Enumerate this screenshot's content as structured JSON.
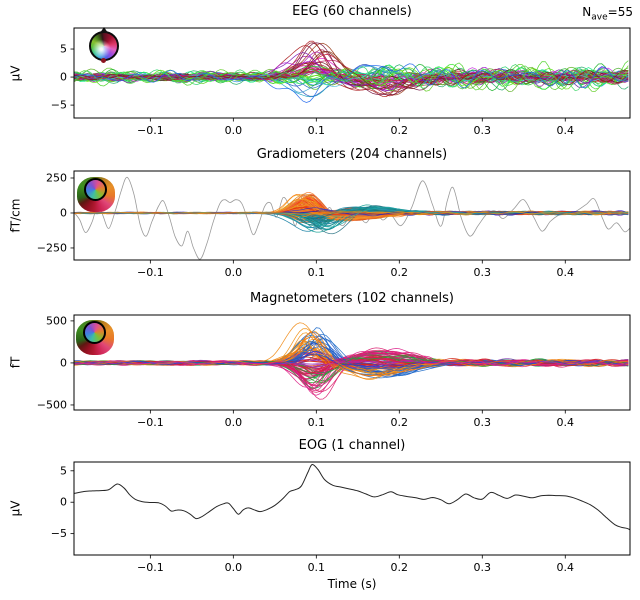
{
  "figure": {
    "nave_prefix": "N",
    "nave_sub": "ave",
    "nave_eq": "=55",
    "background": "#ffffff",
    "spine_color": "#000000"
  },
  "chart_data": [
    {
      "type": "line",
      "variant": "butterfly",
      "title": "EEG (60 channels)",
      "ylabel": "µV",
      "xlabel": "",
      "n_channels": 60,
      "xlim": [
        -0.192,
        0.478
      ],
      "ylim": [
        -7.3,
        8.75
      ],
      "xticks": [
        -0.1,
        0.0,
        0.1,
        0.2,
        0.3,
        0.4
      ],
      "xtick_labels": [
        "−0.1",
        "0.0",
        "0.1",
        "0.2",
        "0.3",
        "0.4"
      ],
      "yticks": [
        5,
        0,
        -5
      ],
      "ytick_labels": [
        "5",
        "0",
        "−5"
      ],
      "annotation": "Nave=55",
      "grid": false,
      "legend": "none",
      "synth": {
        "seed": 11,
        "palette": "eeg",
        "post_noise_scale": 1.8,
        "rebound_scale": -0.45,
        "rebound_delay": 0.085,
        "description": "60 positional rainbow-colored channels, baseline ±1.5 µV, evoked peak ~0.095 s (+7/−4.5 µV), opposite rebound ~0.18 s"
      }
    },
    {
      "type": "line",
      "variant": "butterfly",
      "title": "Gradiometers (204 channels)",
      "ylabel": "fT/cm",
      "xlabel": "",
      "n_channels": 204,
      "xlim": [
        -0.192,
        0.478
      ],
      "ylim": [
        -336,
        300
      ],
      "xticks": [
        -0.1,
        0.0,
        0.1,
        0.2,
        0.3,
        0.4
      ],
      "xtick_labels": [
        "−0.1",
        "0.0",
        "0.1",
        "0.2",
        "0.3",
        "0.4"
      ],
      "yticks": [
        250,
        0,
        -250
      ],
      "ytick_labels": [
        "250",
        "0",
        "−250"
      ],
      "grid": false,
      "legend": "none",
      "synth": {
        "seed": 5,
        "palette": "grad",
        "post_noise_scale": 2.4,
        "rebound_scale": -0.35,
        "rebound_delay": 0.05,
        "description": "tight bundle ±15 fT/cm, evoked peak ~0.085 s (+160 warm / −160 teal)"
      },
      "bad_channel": {
        "color": "#9a9a9a",
        "points": [
          [
            -0.192,
            5
          ],
          [
            -0.185,
            -50
          ],
          [
            -0.178,
            -140
          ],
          [
            -0.17,
            -60
          ],
          [
            -0.163,
            70
          ],
          [
            -0.157,
            -20
          ],
          [
            -0.15,
            -110
          ],
          [
            -0.142,
            20
          ],
          [
            -0.135,
            160
          ],
          [
            -0.128,
            255
          ],
          [
            -0.12,
            140
          ],
          [
            -0.112,
            -90
          ],
          [
            -0.105,
            -165
          ],
          [
            -0.098,
            -60
          ],
          [
            -0.09,
            50
          ],
          [
            -0.084,
            85
          ],
          [
            -0.077,
            -30
          ],
          [
            -0.07,
            -170
          ],
          [
            -0.062,
            -235
          ],
          [
            -0.055,
            -130
          ],
          [
            -0.048,
            -250
          ],
          [
            -0.04,
            -330
          ],
          [
            -0.032,
            -220
          ],
          [
            -0.024,
            -60
          ],
          [
            -0.016,
            70
          ],
          [
            -0.01,
            95
          ],
          [
            -0.004,
            75
          ],
          [
            0.003,
            95
          ],
          [
            0.01,
            70
          ],
          [
            0.017,
            -40
          ],
          [
            0.024,
            -155
          ],
          [
            0.031,
            -70
          ],
          [
            0.038,
            50
          ],
          [
            0.045,
            70
          ],
          [
            0.052,
            -30
          ],
          [
            0.06,
            110
          ],
          [
            0.068,
            40
          ],
          [
            0.075,
            -90
          ],
          [
            0.083,
            120
          ],
          [
            0.092,
            70
          ],
          [
            0.1,
            -110
          ],
          [
            0.108,
            -50
          ],
          [
            0.116,
            40
          ],
          [
            0.124,
            -50
          ],
          [
            0.132,
            -90
          ],
          [
            0.14,
            -30
          ],
          [
            0.15,
            -15
          ],
          [
            0.16,
            -70
          ],
          [
            0.17,
            10
          ],
          [
            0.18,
            -50
          ],
          [
            0.19,
            -15
          ],
          [
            0.202,
            -90
          ],
          [
            0.215,
            40
          ],
          [
            0.228,
            230
          ],
          [
            0.24,
            60
          ],
          [
            0.25,
            -95
          ],
          [
            0.258,
            90
          ],
          [
            0.265,
            180
          ],
          [
            0.275,
            -40
          ],
          [
            0.285,
            -165
          ],
          [
            0.295,
            -90
          ],
          [
            0.305,
            -10
          ],
          [
            0.315,
            15
          ],
          [
            0.325,
            -40
          ],
          [
            0.338,
            30
          ],
          [
            0.35,
            95
          ],
          [
            0.362,
            -30
          ],
          [
            0.372,
            -130
          ],
          [
            0.382,
            -60
          ],
          [
            0.392,
            -15
          ],
          [
            0.402,
            5
          ],
          [
            0.412,
            10
          ],
          [
            0.425,
            60
          ],
          [
            0.435,
            100
          ],
          [
            0.445,
            -40
          ],
          [
            0.452,
            -115
          ],
          [
            0.462,
            -70
          ],
          [
            0.472,
            -135
          ],
          [
            0.482,
            -80
          ],
          [
            0.49,
            -45
          ],
          [
            0.499,
            -15
          ]
        ]
      }
    },
    {
      "type": "line",
      "variant": "butterfly",
      "title": "Magnetometers (102 channels)",
      "ylabel": "fT",
      "xlabel": "",
      "n_channels": 102,
      "xlim": [
        -0.192,
        0.478
      ],
      "ylim": [
        -560,
        570
      ],
      "xticks": [
        -0.1,
        0.0,
        0.1,
        0.2,
        0.3,
        0.4
      ],
      "xtick_labels": [
        "−0.1",
        "0.0",
        "0.1",
        "0.2",
        "0.3",
        "0.4"
      ],
      "yticks": [
        500,
        0,
        -500
      ],
      "ytick_labels": [
        "500",
        "0",
        "−500"
      ],
      "grid": false,
      "legend": "none",
      "synth": {
        "seed": 3,
        "palette": "mag",
        "post_noise_scale": 1.5,
        "rebound_scale": -0.4,
        "rebound_delay": 0.08,
        "description": "slow baseline wiggles ±40 fT, evoked peak ~0.09 s (+520 orange, +480 blue, −430 pink/green)"
      }
    },
    {
      "type": "line",
      "variant": "single",
      "title": "EOG (1 channel)",
      "ylabel": "µV",
      "xlabel": "Time (s)",
      "n_channels": 1,
      "xlim": [
        -0.192,
        0.478
      ],
      "ylim": [
        -8.4,
        6.4
      ],
      "xticks": [
        -0.1,
        0.0,
        0.1,
        0.2,
        0.3,
        0.4
      ],
      "xtick_labels": [
        "−0.1",
        "0.0",
        "0.1",
        "0.2",
        "0.3",
        "0.4"
      ],
      "yticks": [
        5,
        0,
        -5
      ],
      "ytick_labels": [
        "5",
        "0",
        "−5"
      ],
      "grid": false,
      "legend": "none",
      "series": [
        {
          "color": "#262626",
          "points": [
            [
              -0.192,
              1.4
            ],
            [
              -0.18,
              1.7
            ],
            [
              -0.17,
              1.8
            ],
            [
              -0.16,
              1.85
            ],
            [
              -0.15,
              2.0
            ],
            [
              -0.14,
              2.9
            ],
            [
              -0.132,
              2.3
            ],
            [
              -0.125,
              1.2
            ],
            [
              -0.118,
              0.45
            ],
            [
              -0.11,
              0.1
            ],
            [
              -0.1,
              -0.05
            ],
            [
              -0.09,
              -0.1
            ],
            [
              -0.082,
              -0.6
            ],
            [
              -0.075,
              -1.4
            ],
            [
              -0.068,
              -1.25
            ],
            [
              -0.06,
              -1.35
            ],
            [
              -0.052,
              -1.9
            ],
            [
              -0.045,
              -2.6
            ],
            [
              -0.038,
              -2.3
            ],
            [
              -0.03,
              -1.6
            ],
            [
              -0.02,
              -0.7
            ],
            [
              -0.012,
              -0.25
            ],
            [
              -0.006,
              -0.15
            ],
            [
              0.0,
              -1.0
            ],
            [
              0.006,
              -1.9
            ],
            [
              0.012,
              -1.2
            ],
            [
              0.018,
              -0.9
            ],
            [
              0.025,
              -1.2
            ],
            [
              0.032,
              -1.5
            ],
            [
              0.04,
              -1.2
            ],
            [
              0.05,
              -0.5
            ],
            [
              0.06,
              0.6
            ],
            [
              0.068,
              1.7
            ],
            [
              0.075,
              2.0
            ],
            [
              0.082,
              2.6
            ],
            [
              0.09,
              4.8
            ],
            [
              0.095,
              6.0
            ],
            [
              0.102,
              5.2
            ],
            [
              0.11,
              3.6
            ],
            [
              0.12,
              2.7
            ],
            [
              0.13,
              2.4
            ],
            [
              0.14,
              2.1
            ],
            [
              0.15,
              1.8
            ],
            [
              0.16,
              1.3
            ],
            [
              0.17,
              0.85
            ],
            [
              0.18,
              1.2
            ],
            [
              0.19,
              1.65
            ],
            [
              0.198,
              1.2
            ],
            [
              0.21,
              0.9
            ],
            [
              0.22,
              0.7
            ],
            [
              0.23,
              0.45
            ],
            [
              0.24,
              0.75
            ],
            [
              0.25,
              0.4
            ],
            [
              0.26,
              -0.25
            ],
            [
              0.27,
              0.4
            ],
            [
              0.28,
              1.3
            ],
            [
              0.29,
              0.7
            ],
            [
              0.3,
              0.5
            ],
            [
              0.31,
              1.55
            ],
            [
              0.32,
              1.1
            ],
            [
              0.33,
              0.6
            ],
            [
              0.34,
              1.15
            ],
            [
              0.35,
              0.95
            ],
            [
              0.36,
              0.7
            ],
            [
              0.37,
              1.0
            ],
            [
              0.38,
              1.1
            ],
            [
              0.39,
              1.05
            ],
            [
              0.4,
              1.0
            ],
            [
              0.41,
              0.7
            ],
            [
              0.42,
              0.2
            ],
            [
              0.43,
              -0.4
            ],
            [
              0.44,
              -1.3
            ],
            [
              0.45,
              -2.5
            ],
            [
              0.46,
              -3.6
            ],
            [
              0.468,
              -4.0
            ],
            [
              0.475,
              -4.2
            ],
            [
              0.482,
              -4.8
            ],
            [
              0.49,
              -6.0
            ],
            [
              0.499,
              -6.9
            ]
          ]
        }
      ]
    }
  ]
}
